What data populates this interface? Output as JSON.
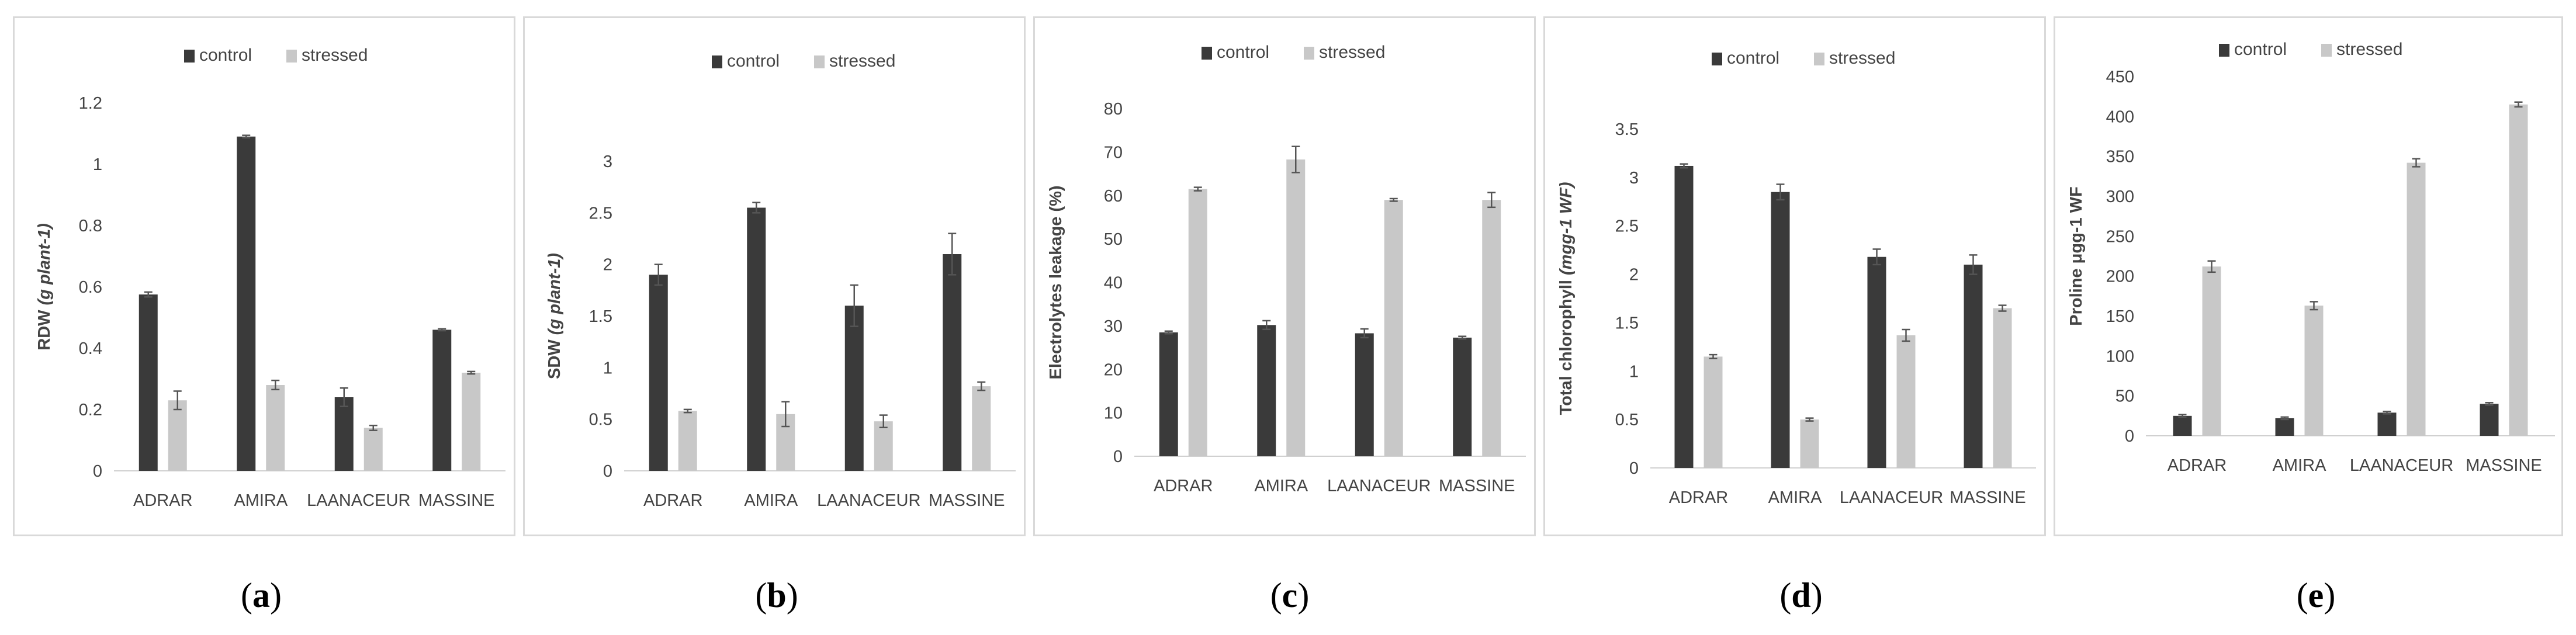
{
  "colors": {
    "control": "#3a3a3a",
    "stressed": "#c8c8c8",
    "axis": "#d0d0d0",
    "text": "#444444",
    "error": "#555555"
  },
  "captions": [
    {
      "open": "(",
      "letter": "a",
      "close": ")"
    },
    {
      "open": "(",
      "letter": "b",
      "close": ")"
    },
    {
      "open": "(",
      "letter": "c",
      "close": ")"
    },
    {
      "open": "(",
      "letter": "d",
      "close": ")"
    },
    {
      "open": "(",
      "letter": "e",
      "close": ")"
    }
  ],
  "chart_data": [
    {
      "type": "bar",
      "ylabel": "RDW (g plant-1)",
      "ylabel_main": "RDW",
      "ylabel_unit": "(g plant-1)",
      "categories": [
        "ADRAR",
        "AMIRA",
        "LAANACEUR",
        "MASSINE"
      ],
      "ylim": [
        0,
        1.2
      ],
      "yticks": [
        0,
        0.2,
        0.4,
        0.6,
        0.8,
        1,
        1.2
      ],
      "tick_labels": [
        "0",
        "0.2",
        "0.4",
        "0.6",
        "0.8",
        "1",
        "1.2"
      ],
      "series": [
        {
          "name": "control",
          "values": [
            0.575,
            1.09,
            0.24,
            0.46
          ],
          "errors": [
            0.008,
            0.004,
            0.03,
            0.003
          ]
        },
        {
          "name": "stressed",
          "values": [
            0.23,
            0.28,
            0.14,
            0.32
          ],
          "errors": [
            0.03,
            0.015,
            0.008,
            0.004
          ]
        }
      ]
    },
    {
      "type": "bar",
      "ylabel": "SDW (g plant-1)",
      "ylabel_main": "SDW",
      "ylabel_unit": "(g plant-1)",
      "categories": [
        "ADRAR",
        "AMIRA",
        "LAANACEUR",
        "MASSINE"
      ],
      "ylim": [
        0,
        3
      ],
      "yticks": [
        0,
        0.5,
        1,
        1.5,
        2,
        2.5,
        3
      ],
      "tick_labels": [
        "0",
        "0.5",
        "1",
        "1.5",
        "2",
        "2.5",
        "3"
      ],
      "series": [
        {
          "name": "control",
          "values": [
            1.9,
            2.55,
            1.6,
            2.1
          ],
          "errors": [
            0.1,
            0.05,
            0.2,
            0.2
          ]
        },
        {
          "name": "stressed",
          "values": [
            0.58,
            0.55,
            0.48,
            0.82
          ],
          "errors": [
            0.015,
            0.12,
            0.06,
            0.04
          ]
        }
      ]
    },
    {
      "type": "bar",
      "ylabel": "Electrolytes leakage (%)",
      "ylabel_main": "Electrolytes leakage (%)",
      "ylabel_unit": "",
      "categories": [
        "ADRAR",
        "AMIRA",
        "LAANACEUR",
        "MASSINE"
      ],
      "ylim": [
        0,
        80
      ],
      "yticks": [
        0,
        10,
        20,
        30,
        40,
        50,
        60,
        70,
        80
      ],
      "tick_labels": [
        "0",
        "10",
        "20",
        "30",
        "40",
        "50",
        "60",
        "70",
        "80"
      ],
      "series": [
        {
          "name": "control",
          "values": [
            28.5,
            30.2,
            28.3,
            27.3
          ],
          "errors": [
            0.3,
            1.0,
            1.0,
            0.3
          ]
        },
        {
          "name": "stressed",
          "values": [
            61.5,
            68.3,
            59.0,
            59.0
          ],
          "errors": [
            0.4,
            3.0,
            0.3,
            1.7
          ]
        }
      ]
    },
    {
      "type": "bar",
      "ylabel": "Total chlorophyll (mgg-1 WF)",
      "ylabel_main": "Total chlorophyll",
      "ylabel_unit": "(mgg-1 WF)",
      "categories": [
        "ADRAR",
        "AMIRA",
        "LAANACEUR",
        "MASSINE"
      ],
      "ylim": [
        0,
        3.5
      ],
      "yticks": [
        0,
        0.5,
        1,
        1.5,
        2,
        2.5,
        3,
        3.5
      ],
      "tick_labels": [
        "0",
        "0.5",
        "1",
        "1.5",
        "2",
        "2.5",
        "3",
        "3.5"
      ],
      "series": [
        {
          "name": "control",
          "values": [
            3.12,
            2.85,
            2.18,
            2.1
          ],
          "errors": [
            0.02,
            0.08,
            0.08,
            0.1
          ]
        },
        {
          "name": "stressed",
          "values": [
            1.15,
            0.5,
            1.37,
            1.65
          ],
          "errors": [
            0.02,
            0.015,
            0.06,
            0.03
          ]
        }
      ]
    },
    {
      "type": "bar",
      "ylabel": "Proline μgg-1 WF",
      "ylabel_main": "Proline μgg-1 WF",
      "ylabel_unit": "",
      "categories": [
        "ADRAR",
        "AMIRA",
        "LAANACEUR",
        "MASSINE"
      ],
      "ylim": [
        0,
        450
      ],
      "yticks": [
        0,
        50,
        100,
        150,
        200,
        250,
        300,
        350,
        400,
        450
      ],
      "tick_labels": [
        "0",
        "50",
        "100",
        "150",
        "200",
        "250",
        "300",
        "350",
        "400",
        "450"
      ],
      "series": [
        {
          "name": "control",
          "values": [
            25,
            22,
            29,
            40
          ],
          "errors": [
            1.5,
            1.5,
            1.5,
            1.5
          ]
        },
        {
          "name": "stressed",
          "values": [
            212,
            163,
            342,
            415
          ],
          "errors": [
            7,
            5,
            5,
            3
          ]
        }
      ]
    }
  ]
}
